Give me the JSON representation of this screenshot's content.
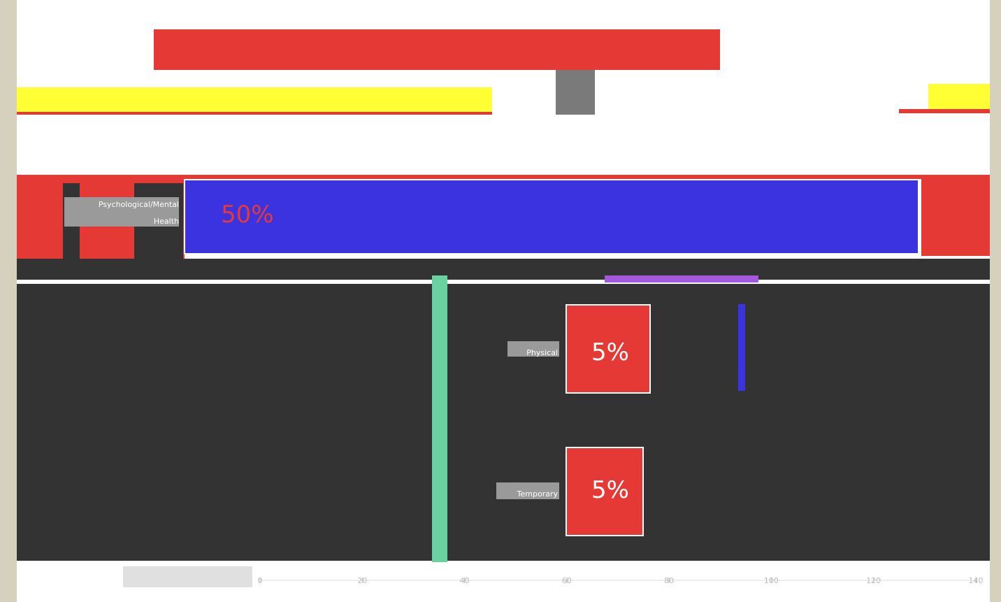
{
  "colors": {
    "page_bg": "#d6d1bd",
    "plot_bg_dark": "#333333",
    "plot_bg_light": "#ffffff",
    "bar_red": "#e53935",
    "bar_blue": "#3b33e0",
    "bar_yellow": "#ffff33",
    "label_box": "#ffffff"
  },
  "chart_data": {
    "type": "bar",
    "orientation": "horizontal",
    "categories": [
      "Psychological/Mental Health",
      "Physical",
      "Temporary"
    ],
    "values": [
      50,
      5,
      5
    ],
    "value_labels": [
      "50%",
      "5%",
      "5%"
    ],
    "xlim": [
      0,
      140
    ],
    "x_ticks": [
      0,
      20,
      40,
      60,
      80,
      100,
      120,
      140
    ],
    "x_tick_labels": [
      "0",
      "20",
      "40",
      "60",
      "80",
      "100",
      "120",
      "140"
    ],
    "grid": false
  }
}
